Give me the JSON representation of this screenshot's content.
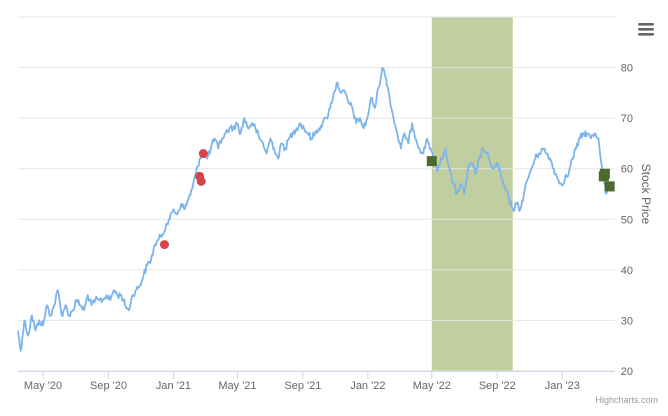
{
  "chart_data": {
    "type": "line",
    "title": "",
    "xlabel": "",
    "ylabel": "Stock Price",
    "ylim": [
      20,
      90
    ],
    "y_ticks": [
      20,
      30,
      40,
      50,
      60,
      70,
      80
    ],
    "y_axis_side": "right",
    "x_ticks": [
      "May '20",
      "Sep '20",
      "Jan '21",
      "May '21",
      "Sep '21",
      "Jan '22",
      "May '22",
      "Sep '22",
      "Jan '23"
    ],
    "xlim": [
      "2020-03-15",
      "2023-04-10"
    ],
    "grid": true,
    "legend": "none",
    "highlight_band": {
      "from": "2022-05-01",
      "to": "2022-09-30",
      "color": "#c1cea0"
    },
    "series": [
      {
        "name": "",
        "color": "#7cb5ec",
        "points": [
          [
            "2020-03-15",
            28
          ],
          [
            "2020-03-20",
            24
          ],
          [
            "2020-03-27",
            30
          ],
          [
            "2020-04-03",
            27
          ],
          [
            "2020-04-10",
            31
          ],
          [
            "2020-04-17",
            28
          ],
          [
            "2020-04-24",
            30
          ],
          [
            "2020-05-01",
            29
          ],
          [
            "2020-05-08",
            33
          ],
          [
            "2020-05-15",
            31
          ],
          [
            "2020-05-22",
            33
          ],
          [
            "2020-05-29",
            36
          ],
          [
            "2020-06-05",
            31
          ],
          [
            "2020-06-12",
            33
          ],
          [
            "2020-06-19",
            31
          ],
          [
            "2020-06-26",
            32
          ],
          [
            "2020-07-03",
            34
          ],
          [
            "2020-07-10",
            33
          ],
          [
            "2020-07-17",
            32
          ],
          [
            "2020-07-24",
            35
          ],
          [
            "2020-07-31",
            33
          ],
          [
            "2020-08-07",
            34
          ],
          [
            "2020-08-14",
            34
          ],
          [
            "2020-08-21",
            34
          ],
          [
            "2020-08-28",
            35
          ],
          [
            "2020-09-04",
            34
          ],
          [
            "2020-09-11",
            36
          ],
          [
            "2020-09-18",
            35
          ],
          [
            "2020-09-25",
            35
          ],
          [
            "2020-10-02",
            33
          ],
          [
            "2020-10-09",
            32
          ],
          [
            "2020-10-16",
            35
          ],
          [
            "2020-10-23",
            36
          ],
          [
            "2020-10-30",
            37
          ],
          [
            "2020-11-06",
            39
          ],
          [
            "2020-11-13",
            41
          ],
          [
            "2020-11-20",
            42
          ],
          [
            "2020-11-27",
            45
          ],
          [
            "2020-12-04",
            46
          ],
          [
            "2020-12-11",
            47
          ],
          [
            "2020-12-18",
            49
          ],
          [
            "2020-12-25",
            50
          ],
          [
            "2021-01-01",
            52
          ],
          [
            "2021-01-08",
            51
          ],
          [
            "2021-01-15",
            53
          ],
          [
            "2021-01-22",
            52
          ],
          [
            "2021-01-29",
            54
          ],
          [
            "2021-02-05",
            56
          ],
          [
            "2021-02-12",
            59
          ],
          [
            "2021-02-19",
            62
          ],
          [
            "2021-02-26",
            63
          ],
          [
            "2021-03-05",
            62
          ],
          [
            "2021-03-12",
            64
          ],
          [
            "2021-03-19",
            66
          ],
          [
            "2021-03-26",
            64
          ],
          [
            "2021-04-02",
            66
          ],
          [
            "2021-04-09",
            67
          ],
          [
            "2021-04-16",
            68
          ],
          [
            "2021-04-23",
            68
          ],
          [
            "2021-04-30",
            69
          ],
          [
            "2021-05-07",
            67
          ],
          [
            "2021-05-14",
            70
          ],
          [
            "2021-05-21",
            68
          ],
          [
            "2021-05-28",
            69
          ],
          [
            "2021-06-04",
            68
          ],
          [
            "2021-06-11",
            66
          ],
          [
            "2021-06-18",
            65
          ],
          [
            "2021-06-25",
            63
          ],
          [
            "2021-07-02",
            66
          ],
          [
            "2021-07-09",
            64
          ],
          [
            "2021-07-16",
            62
          ],
          [
            "2021-07-23",
            65
          ],
          [
            "2021-07-30",
            64
          ],
          [
            "2021-08-06",
            66
          ],
          [
            "2021-08-13",
            67
          ],
          [
            "2021-08-20",
            68
          ],
          [
            "2021-08-27",
            69
          ],
          [
            "2021-09-03",
            68
          ],
          [
            "2021-09-10",
            67
          ],
          [
            "2021-09-17",
            66
          ],
          [
            "2021-09-24",
            67
          ],
          [
            "2021-10-01",
            68
          ],
          [
            "2021-10-08",
            69
          ],
          [
            "2021-10-15",
            70
          ],
          [
            "2021-10-22",
            72
          ],
          [
            "2021-10-29",
            75
          ],
          [
            "2021-11-05",
            77
          ],
          [
            "2021-11-12",
            75
          ],
          [
            "2021-11-19",
            75
          ],
          [
            "2021-11-26",
            73
          ],
          [
            "2021-12-03",
            72
          ],
          [
            "2021-12-10",
            69
          ],
          [
            "2021-12-17",
            70
          ],
          [
            "2021-12-24",
            68
          ],
          [
            "2021-12-31",
            70
          ],
          [
            "2022-01-07",
            74
          ],
          [
            "2022-01-14",
            72
          ],
          [
            "2022-01-21",
            76
          ],
          [
            "2022-01-28",
            80
          ],
          [
            "2022-02-04",
            78
          ],
          [
            "2022-02-11",
            74
          ],
          [
            "2022-02-18",
            70
          ],
          [
            "2022-02-25",
            67
          ],
          [
            "2022-03-04",
            64
          ],
          [
            "2022-03-11",
            67
          ],
          [
            "2022-03-18",
            65
          ],
          [
            "2022-03-25",
            69
          ],
          [
            "2022-04-01",
            66
          ],
          [
            "2022-04-08",
            64
          ],
          [
            "2022-04-15",
            63
          ],
          [
            "2022-04-22",
            66
          ],
          [
            "2022-04-29",
            64
          ],
          [
            "2022-05-06",
            61
          ],
          [
            "2022-05-13",
            60
          ],
          [
            "2022-05-20",
            62
          ],
          [
            "2022-05-27",
            64
          ],
          [
            "2022-06-03",
            60
          ],
          [
            "2022-06-10",
            57
          ],
          [
            "2022-06-17",
            55
          ],
          [
            "2022-06-24",
            57
          ],
          [
            "2022-07-01",
            55
          ],
          [
            "2022-07-08",
            60
          ],
          [
            "2022-07-15",
            61
          ],
          [
            "2022-07-22",
            59
          ],
          [
            "2022-07-29",
            62
          ],
          [
            "2022-08-05",
            64
          ],
          [
            "2022-08-12",
            63
          ],
          [
            "2022-08-19",
            61
          ],
          [
            "2022-08-26",
            60
          ],
          [
            "2022-09-02",
            61
          ],
          [
            "2022-09-09",
            58
          ],
          [
            "2022-09-16",
            56
          ],
          [
            "2022-09-23",
            54
          ],
          [
            "2022-09-30",
            52
          ],
          [
            "2022-10-07",
            53
          ],
          [
            "2022-10-14",
            52
          ],
          [
            "2022-10-21",
            55
          ],
          [
            "2022-10-28",
            58
          ],
          [
            "2022-11-04",
            60
          ],
          [
            "2022-11-11",
            62
          ],
          [
            "2022-11-18",
            63
          ],
          [
            "2022-11-25",
            64
          ],
          [
            "2022-12-02",
            63
          ],
          [
            "2022-12-09",
            62
          ],
          [
            "2022-12-16",
            60
          ],
          [
            "2022-12-23",
            58
          ],
          [
            "2022-12-30",
            57
          ],
          [
            "2023-01-06",
            58
          ],
          [
            "2023-01-13",
            59
          ],
          [
            "2023-01-20",
            62
          ],
          [
            "2023-01-27",
            64
          ],
          [
            "2023-02-03",
            66
          ],
          [
            "2023-02-10",
            67
          ],
          [
            "2023-02-17",
            67
          ],
          [
            "2023-02-24",
            66
          ],
          [
            "2023-03-03",
            67
          ],
          [
            "2023-03-10",
            66
          ],
          [
            "2023-03-17",
            60
          ],
          [
            "2023-03-24",
            55
          ],
          [
            "2023-03-31",
            57
          ],
          [
            "2023-04-07",
            56
          ]
        ]
      }
    ],
    "markers": [
      {
        "kind": "buy-circle",
        "color": "#d9434a",
        "date": "2020-12-15",
        "value": 45
      },
      {
        "kind": "buy-circle",
        "color": "#d9434a",
        "date": "2021-02-19",
        "value": 58.5
      },
      {
        "kind": "buy-circle",
        "color": "#d9434a",
        "date": "2021-02-22",
        "value": 57.5
      },
      {
        "kind": "buy-circle",
        "color": "#d9434a",
        "date": "2021-02-26",
        "value": 63
      },
      {
        "kind": "sell-square",
        "color": "#4b6a2b",
        "date": "2022-05-01",
        "value": 61.5
      },
      {
        "kind": "sell-square",
        "color": "#4b6a2b",
        "date": "2023-03-20",
        "value": 58.5
      },
      {
        "kind": "sell-square",
        "color": "#4b6a2b",
        "date": "2023-03-22",
        "value": 59
      },
      {
        "kind": "sell-square",
        "color": "#4b6a2b",
        "date": "2023-03-31",
        "value": 56.5
      }
    ],
    "credit": "Highcharts.com"
  },
  "colors": {
    "line": "#7cb5ec",
    "grid": "#e6e6e6",
    "band": "#c1cea0",
    "buy": "#d9434a",
    "sell": "#4b6a2b"
  },
  "toolbar": {
    "menu_icon": "hamburger-menu-icon"
  }
}
